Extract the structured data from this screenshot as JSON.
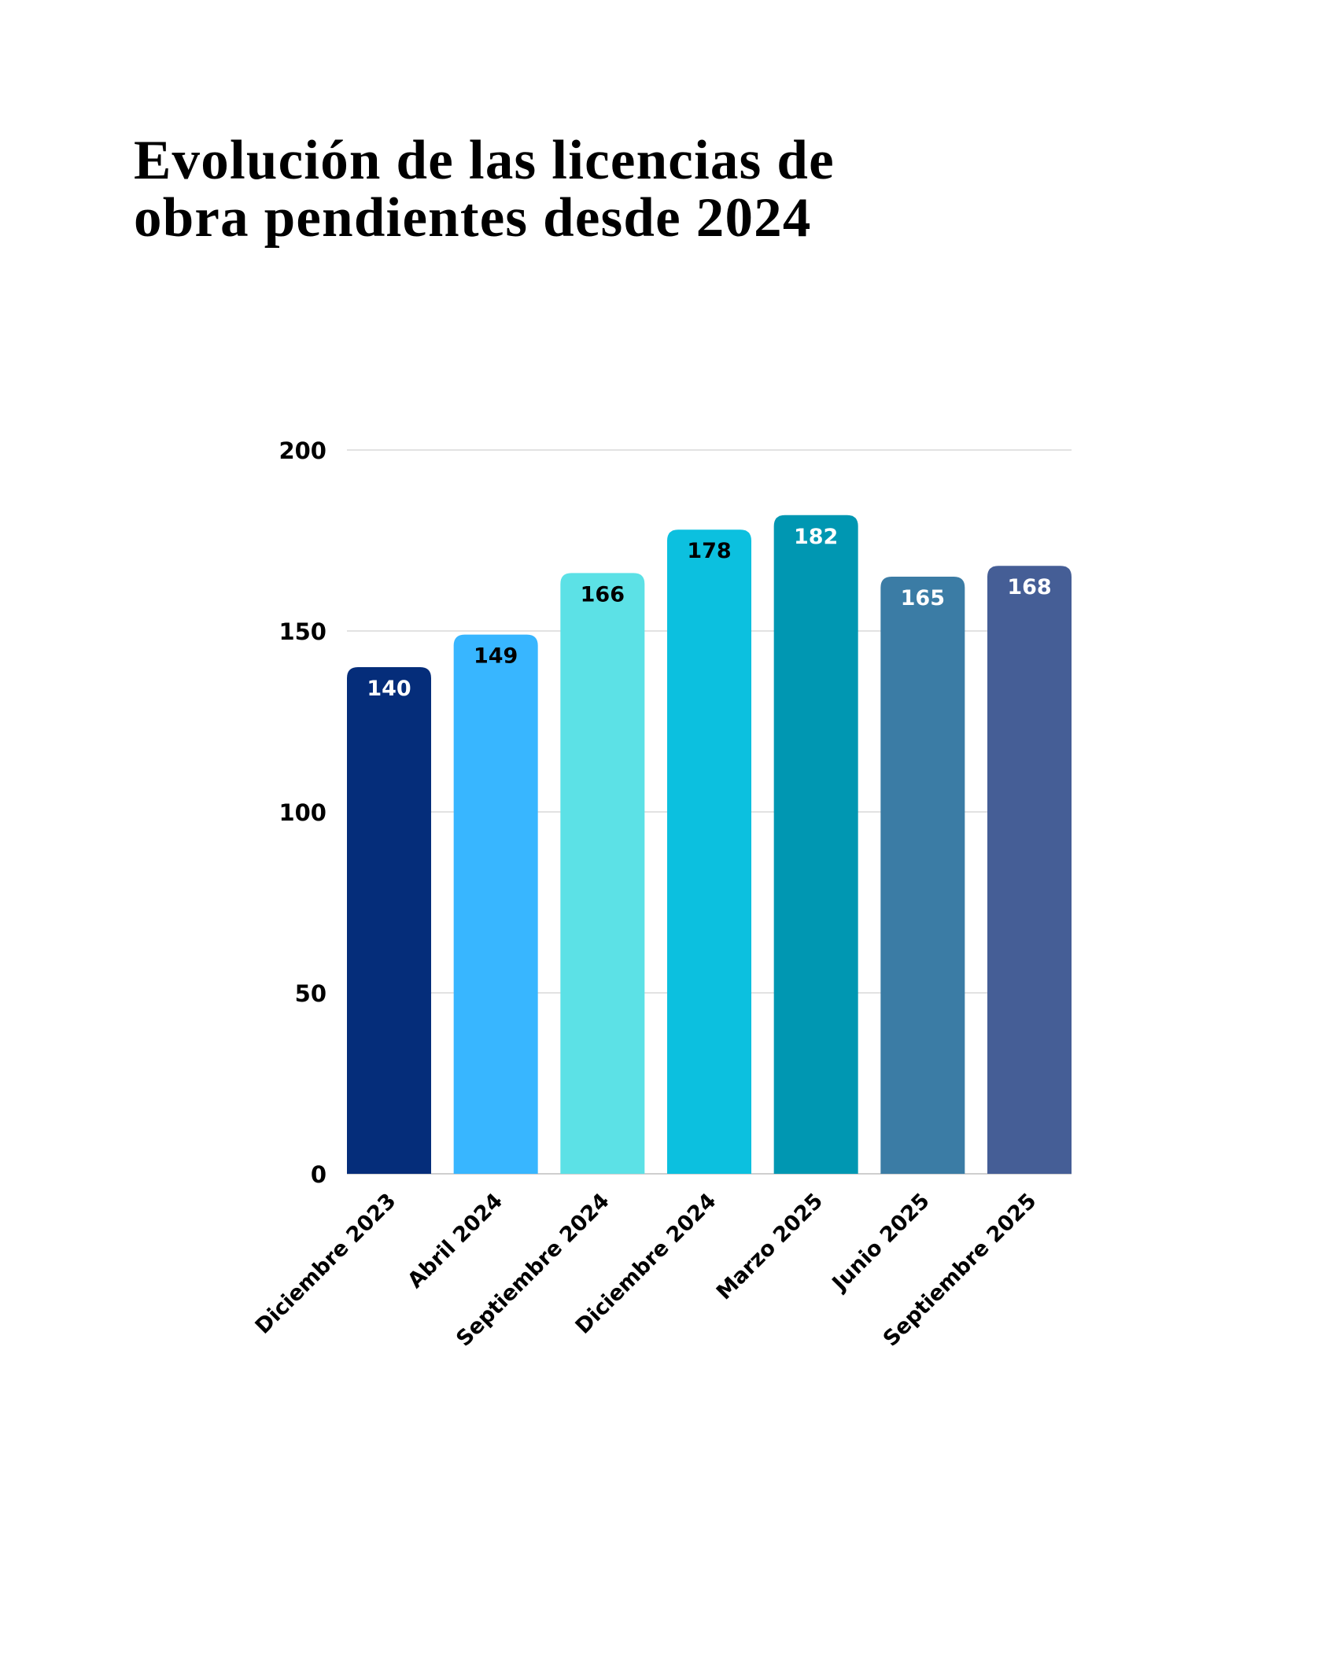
{
  "title": {
    "line1": "Evolución de las licencias de",
    "line2": "obra pendientes desde 2024"
  },
  "chart_data": {
    "type": "bar",
    "title": "Evolución de las licencias de obra pendientes desde 2024",
    "xlabel": "",
    "ylabel": "",
    "categories": [
      "Diciembre 2023",
      "Abril 2024",
      "Septiembre 2024",
      "Diciembre 2024",
      "Marzo 2025",
      "Junio 2025",
      "Septiembre 2025"
    ],
    "values": [
      140,
      149,
      166,
      178,
      182,
      165,
      168
    ],
    "value_labels": [
      "140",
      "149",
      "166",
      "178",
      "182",
      "165",
      "168"
    ],
    "bar_colors": [
      "#052d7a",
      "#38b6ff",
      "#5ce1e6",
      "#0cc0df",
      "#0097b2",
      "#3b7ca5",
      "#455e96"
    ],
    "label_colors": [
      "#ffffff",
      "#000000",
      "#000000",
      "#000000",
      "#ffffff",
      "#ffffff",
      "#ffffff"
    ],
    "ylim": [
      0,
      200
    ],
    "yticks": [
      0,
      50,
      100,
      150,
      200
    ],
    "ytick_labels": [
      "0",
      "50",
      "100",
      "150",
      "200"
    ],
    "grid": true,
    "gridline_color": "#d9d9d9",
    "legend": "none",
    "xtick_rotation_deg": -45
  }
}
